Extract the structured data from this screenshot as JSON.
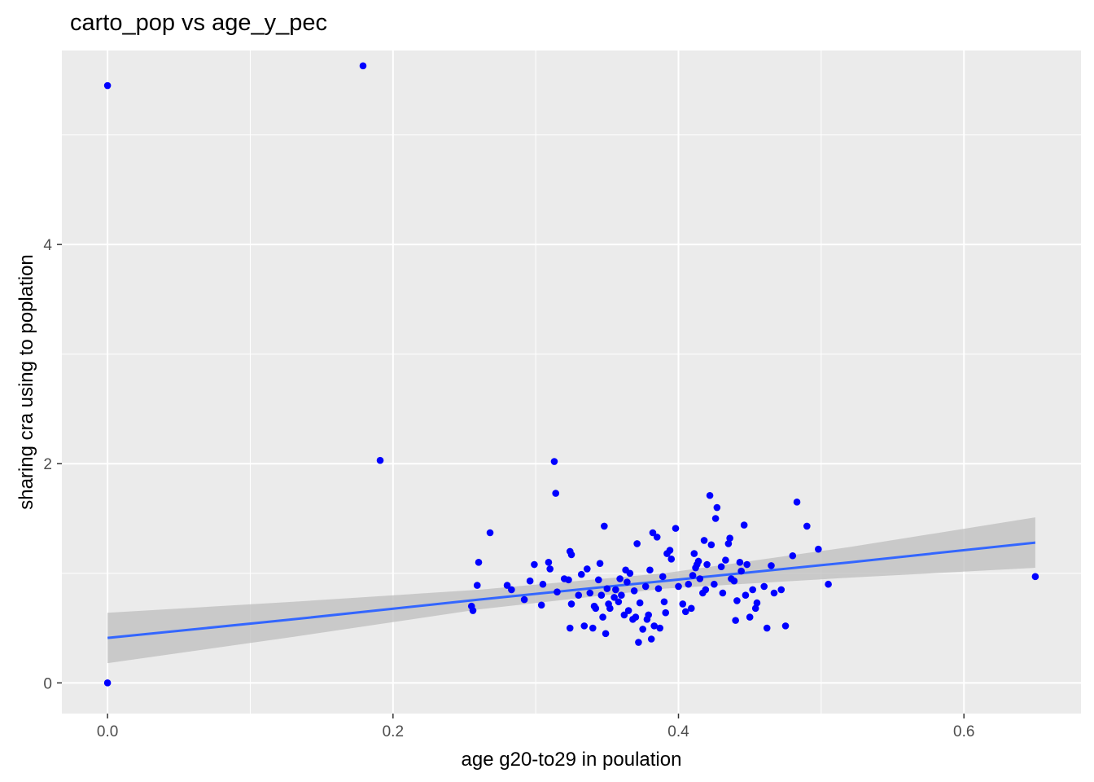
{
  "chart_data": {
    "type": "scatter",
    "title": "carto_pop vs age_y_pec",
    "xlabel": "age g20-to29 in poulation",
    "ylabel": "sharing cra using to poplation",
    "xlim": [
      -0.032,
      0.682
    ],
    "ylim": [
      -0.28,
      5.77
    ],
    "x_ticks": [
      0.0,
      0.2,
      0.4,
      0.6
    ],
    "x_tick_labels": [
      "0.0",
      "0.2",
      "0.4",
      "0.6"
    ],
    "y_ticks": [
      0,
      2,
      4
    ],
    "y_tick_labels": [
      "0",
      "2",
      "4"
    ],
    "grid": true,
    "point_color": "#0000FF",
    "panel_background": "#EBEBEB",
    "grid_color": "#FFFFFF",
    "fit_line": {
      "method": "lm",
      "color": "#3366FF",
      "band_color": "#BEBEBE",
      "x": [
        0.0,
        0.13,
        0.26,
        0.39,
        0.52,
        0.65
      ],
      "y": [
        0.41,
        0.58,
        0.76,
        0.93,
        1.1,
        1.28
      ],
      "lower": [
        0.18,
        0.42,
        0.67,
        0.86,
        0.96,
        1.05
      ],
      "upper": [
        0.64,
        0.74,
        0.85,
        1.0,
        1.24,
        1.51
      ]
    },
    "points": [
      {
        "x": 0.0,
        "y": 5.45
      },
      {
        "x": 0.179,
        "y": 5.63
      },
      {
        "x": 0.0,
        "y": 0.0
      },
      {
        "x": 0.191,
        "y": 2.03
      },
      {
        "x": 0.313,
        "y": 2.02
      },
      {
        "x": 0.314,
        "y": 1.73
      },
      {
        "x": 0.268,
        "y": 1.37
      },
      {
        "x": 0.26,
        "y": 1.1
      },
      {
        "x": 0.259,
        "y": 0.89
      },
      {
        "x": 0.255,
        "y": 0.7
      },
      {
        "x": 0.256,
        "y": 0.66
      },
      {
        "x": 0.28,
        "y": 0.89
      },
      {
        "x": 0.283,
        "y": 0.85
      },
      {
        "x": 0.292,
        "y": 0.76
      },
      {
        "x": 0.296,
        "y": 0.93
      },
      {
        "x": 0.299,
        "y": 1.08
      },
      {
        "x": 0.304,
        "y": 0.71
      },
      {
        "x": 0.305,
        "y": 0.9
      },
      {
        "x": 0.309,
        "y": 1.1
      },
      {
        "x": 0.31,
        "y": 1.04
      },
      {
        "x": 0.315,
        "y": 0.83
      },
      {
        "x": 0.32,
        "y": 0.95
      },
      {
        "x": 0.323,
        "y": 0.94
      },
      {
        "x": 0.324,
        "y": 1.2
      },
      {
        "x": 0.325,
        "y": 1.17
      },
      {
        "x": 0.324,
        "y": 0.5
      },
      {
        "x": 0.325,
        "y": 0.72
      },
      {
        "x": 0.33,
        "y": 0.8
      },
      {
        "x": 0.332,
        "y": 0.99
      },
      {
        "x": 0.334,
        "y": 0.52
      },
      {
        "x": 0.336,
        "y": 1.04
      },
      {
        "x": 0.338,
        "y": 0.82
      },
      {
        "x": 0.34,
        "y": 0.5
      },
      {
        "x": 0.341,
        "y": 0.7
      },
      {
        "x": 0.342,
        "y": 0.68
      },
      {
        "x": 0.344,
        "y": 0.94
      },
      {
        "x": 0.345,
        "y": 1.09
      },
      {
        "x": 0.346,
        "y": 0.8
      },
      {
        "x": 0.347,
        "y": 0.6
      },
      {
        "x": 0.348,
        "y": 1.43
      },
      {
        "x": 0.349,
        "y": 0.45
      },
      {
        "x": 0.35,
        "y": 0.86
      },
      {
        "x": 0.351,
        "y": 0.72
      },
      {
        "x": 0.352,
        "y": 0.68
      },
      {
        "x": 0.355,
        "y": 0.78
      },
      {
        "x": 0.356,
        "y": 0.85
      },
      {
        "x": 0.358,
        "y": 0.74
      },
      {
        "x": 0.359,
        "y": 0.95
      },
      {
        "x": 0.36,
        "y": 0.8
      },
      {
        "x": 0.362,
        "y": 0.62
      },
      {
        "x": 0.363,
        "y": 1.03
      },
      {
        "x": 0.364,
        "y": 0.92
      },
      {
        "x": 0.365,
        "y": 0.66
      },
      {
        "x": 0.366,
        "y": 1.0
      },
      {
        "x": 0.368,
        "y": 0.58
      },
      {
        "x": 0.369,
        "y": 0.84
      },
      {
        "x": 0.37,
        "y": 0.6
      },
      {
        "x": 0.371,
        "y": 1.27
      },
      {
        "x": 0.372,
        "y": 0.37
      },
      {
        "x": 0.373,
        "y": 0.73
      },
      {
        "x": 0.375,
        "y": 0.49
      },
      {
        "x": 0.377,
        "y": 0.88
      },
      {
        "x": 0.378,
        "y": 0.58
      },
      {
        "x": 0.379,
        "y": 0.62
      },
      {
        "x": 0.38,
        "y": 1.03
      },
      {
        "x": 0.381,
        "y": 0.4
      },
      {
        "x": 0.382,
        "y": 1.37
      },
      {
        "x": 0.383,
        "y": 0.52
      },
      {
        "x": 0.385,
        "y": 1.33
      },
      {
        "x": 0.386,
        "y": 0.86
      },
      {
        "x": 0.387,
        "y": 0.5
      },
      {
        "x": 0.389,
        "y": 0.97
      },
      {
        "x": 0.39,
        "y": 0.74
      },
      {
        "x": 0.391,
        "y": 0.64
      },
      {
        "x": 0.392,
        "y": 1.18
      },
      {
        "x": 0.394,
        "y": 1.21
      },
      {
        "x": 0.395,
        "y": 1.13
      },
      {
        "x": 0.398,
        "y": 1.41
      },
      {
        "x": 0.4,
        "y": 0.88
      },
      {
        "x": 0.403,
        "y": 0.72
      },
      {
        "x": 0.405,
        "y": 0.65
      },
      {
        "x": 0.407,
        "y": 0.9
      },
      {
        "x": 0.409,
        "y": 0.68
      },
      {
        "x": 0.41,
        "y": 0.98
      },
      {
        "x": 0.411,
        "y": 1.18
      },
      {
        "x": 0.412,
        "y": 1.05
      },
      {
        "x": 0.413,
        "y": 1.08
      },
      {
        "x": 0.414,
        "y": 1.11
      },
      {
        "x": 0.415,
        "y": 0.95
      },
      {
        "x": 0.417,
        "y": 0.82
      },
      {
        "x": 0.418,
        "y": 1.3
      },
      {
        "x": 0.419,
        "y": 0.85
      },
      {
        "x": 0.42,
        "y": 1.08
      },
      {
        "x": 0.422,
        "y": 1.71
      },
      {
        "x": 0.423,
        "y": 1.26
      },
      {
        "x": 0.425,
        "y": 0.9
      },
      {
        "x": 0.426,
        "y": 1.5
      },
      {
        "x": 0.427,
        "y": 1.6
      },
      {
        "x": 0.43,
        "y": 1.06
      },
      {
        "x": 0.431,
        "y": 0.82
      },
      {
        "x": 0.433,
        "y": 1.12
      },
      {
        "x": 0.435,
        "y": 1.27
      },
      {
        "x": 0.436,
        "y": 1.32
      },
      {
        "x": 0.437,
        "y": 0.95
      },
      {
        "x": 0.439,
        "y": 0.93
      },
      {
        "x": 0.44,
        "y": 0.57
      },
      {
        "x": 0.441,
        "y": 0.75
      },
      {
        "x": 0.443,
        "y": 1.1
      },
      {
        "x": 0.444,
        "y": 1.02
      },
      {
        "x": 0.446,
        "y": 1.44
      },
      {
        "x": 0.447,
        "y": 0.8
      },
      {
        "x": 0.448,
        "y": 1.08
      },
      {
        "x": 0.45,
        "y": 0.6
      },
      {
        "x": 0.452,
        "y": 0.85
      },
      {
        "x": 0.454,
        "y": 0.68
      },
      {
        "x": 0.455,
        "y": 0.73
      },
      {
        "x": 0.46,
        "y": 0.88
      },
      {
        "x": 0.462,
        "y": 0.5
      },
      {
        "x": 0.465,
        "y": 1.07
      },
      {
        "x": 0.467,
        "y": 0.82
      },
      {
        "x": 0.472,
        "y": 0.85
      },
      {
        "x": 0.475,
        "y": 0.52
      },
      {
        "x": 0.48,
        "y": 1.16
      },
      {
        "x": 0.483,
        "y": 1.65
      },
      {
        "x": 0.49,
        "y": 1.43
      },
      {
        "x": 0.498,
        "y": 1.22
      },
      {
        "x": 0.505,
        "y": 0.9
      },
      {
        "x": 0.65,
        "y": 0.97
      }
    ]
  }
}
